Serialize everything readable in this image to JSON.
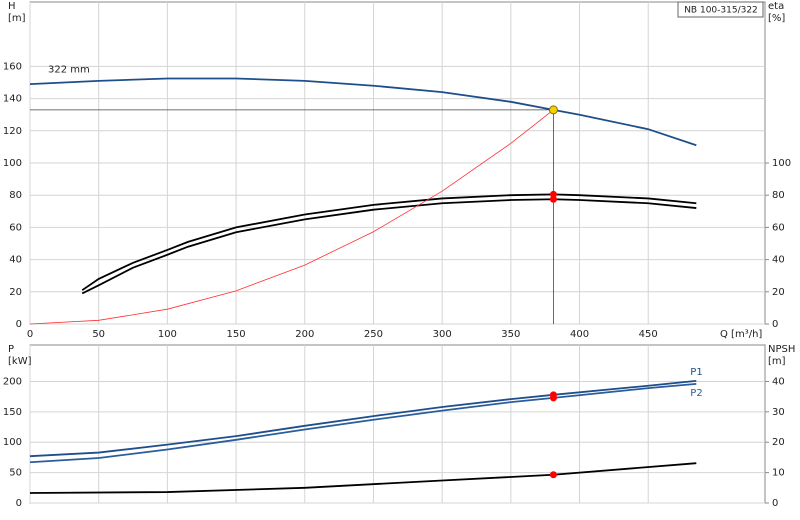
{
  "chart_data": [
    {
      "type": "line",
      "title": "NB 100-315/322",
      "ylabel": "H",
      "yunit": "[m]",
      "y2label": "eta",
      "y2unit": "[%]",
      "xlabel": "Q [m³/h]",
      "annotation": "322 mm",
      "show_xtick_labels": true,
      "grid": true,
      "xlim": [
        0,
        535
      ],
      "xticks": [
        0,
        50,
        100,
        150,
        200,
        250,
        300,
        350,
        400,
        450
      ],
      "ylim": [
        0,
        200
      ],
      "yticks": [
        0,
        20,
        40,
        60,
        80,
        100,
        120,
        140,
        160
      ],
      "y2lim": [
        0,
        200
      ],
      "y2ticks": [
        0,
        20,
        40,
        60,
        80,
        100
      ],
      "series": [
        {
          "color": "#1f4e8c",
          "x": [
            0,
            50,
            100,
            150,
            200,
            250,
            300,
            350,
            381,
            400,
            450,
            485
          ],
          "values": [
            149,
            151,
            152.5,
            152.5,
            151,
            148,
            144,
            138,
            133,
            130,
            121,
            111
          ]
        },
        {
          "color": "#000000",
          "axis": "y2",
          "x": [
            38,
            50,
            75,
            100,
            115,
            150,
            200,
            250,
            300,
            350,
            381,
            400,
            450,
            485
          ],
          "values": [
            21,
            28,
            38,
            46,
            51,
            60,
            68,
            74,
            78,
            80,
            80.5,
            80,
            78,
            75
          ]
        },
        {
          "color": "#000000",
          "axis": "y2",
          "x": [
            38,
            50,
            75,
            100,
            115,
            150,
            200,
            250,
            300,
            350,
            381,
            400,
            450,
            485
          ],
          "values": [
            19,
            24,
            35,
            43,
            48,
            57,
            65,
            71,
            75,
            77,
            77.5,
            77,
            75,
            72
          ]
        },
        {
          "color": "#ff3030",
          "x": [
            0,
            50,
            100,
            150,
            200,
            250,
            300,
            350,
            381
          ],
          "values": [
            0,
            2.3,
            9.2,
            20.6,
            36.6,
            57.3,
            82.5,
            112.2,
            133
          ]
        }
      ],
      "operating_point": {
        "x": 381,
        "y": 133,
        "color": "#f5d000"
      },
      "duty_points": [
        {
          "x": 381,
          "y": 80.5,
          "axis": "y2",
          "color": "#ff0000"
        },
        {
          "x": 381,
          "y": 77.5,
          "axis": "y2",
          "color": "#ff0000"
        }
      ]
    },
    {
      "type": "line",
      "ylabel": "P",
      "yunit": "[kW]",
      "y2label": "NPSH",
      "y2unit": "[m]",
      "show_xtick_labels": false,
      "grid": true,
      "xlim": [
        0,
        535
      ],
      "xticks": [
        0,
        50,
        100,
        150,
        200,
        250,
        300,
        350,
        400,
        450
      ],
      "ylim": [
        0,
        260
      ],
      "yticks": [
        0,
        50,
        100,
        150,
        200
      ],
      "y2lim": [
        0,
        52
      ],
      "y2ticks": [
        0,
        10,
        20,
        30,
        40
      ],
      "series": [
        {
          "name": "P1",
          "color": "#1f4e8c",
          "x": [
            0,
            50,
            100,
            150,
            200,
            250,
            300,
            350,
            381,
            450,
            485
          ],
          "values": [
            77,
            83,
            96,
            110,
            127,
            143,
            158,
            171,
            178,
            193,
            201
          ]
        },
        {
          "name": "P2",
          "color": "#2a5d9c",
          "x": [
            0,
            50,
            100,
            150,
            200,
            250,
            300,
            350,
            381,
            450,
            485
          ],
          "values": [
            67,
            74,
            88,
            104,
            121,
            137,
            152,
            166,
            173,
            189,
            196
          ]
        },
        {
          "color": "#000000",
          "axis": "y2",
          "x": [
            0,
            100,
            200,
            300,
            381,
            485
          ],
          "values": [
            3.3,
            3.6,
            5,
            7.4,
            9.3,
            13.1
          ]
        }
      ],
      "duty_points": [
        {
          "x": 381,
          "y": 178,
          "color": "#ff0000"
        },
        {
          "x": 381,
          "y": 173,
          "color": "#ff0000"
        },
        {
          "x": 381,
          "y": 9.3,
          "axis": "y2",
          "color": "#ff0000"
        }
      ]
    }
  ]
}
